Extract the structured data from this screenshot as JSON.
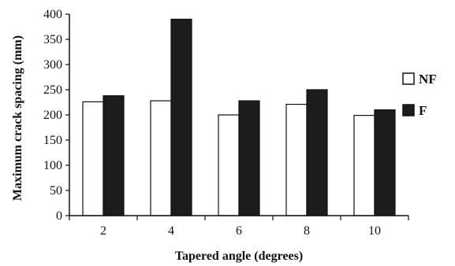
{
  "chart_data": {
    "type": "bar",
    "title": "",
    "xlabel": "Tapered angle (degrees)",
    "ylabel": "Maximum crack spacing (mm)",
    "categories": [
      "2",
      "4",
      "6",
      "8",
      "10"
    ],
    "ylim": [
      0,
      400
    ],
    "yticks": [
      "0",
      "50",
      "100",
      "150",
      "200",
      "250",
      "300",
      "350",
      "400"
    ],
    "grid": false,
    "legend_position": "right",
    "series": [
      {
        "name": "NF",
        "values": [
          226,
          228,
          200,
          221,
          199
        ],
        "color": "#ffffff"
      },
      {
        "name": "F",
        "values": [
          238,
          390,
          228,
          250,
          210
        ],
        "color": "#1c1c1c"
      }
    ]
  }
}
